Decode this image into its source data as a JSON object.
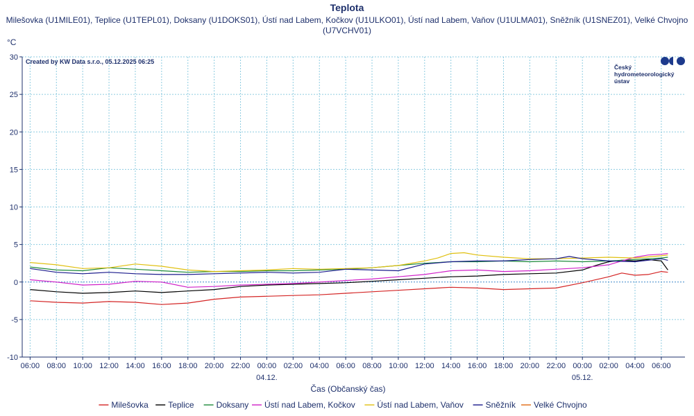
{
  "chart_data": {
    "type": "line",
    "title": "Teplota",
    "subtitle_line1": "Milešovka (U1MILE01), Teplice (U1TEPL01), Doksany (U1DOKS01), Ústí nad Labem, Kočkov (U1ULKO01), Ústí nad Labem, Vaňov (U1ULMA01), Sněžník (U1SNEZ01), Velké Chvojno",
    "subtitle_line2": "(U7VCHV01)",
    "ylabel": "°C",
    "xlabel": "Čas (Občanský čas)",
    "credit": "Created by KW Data s.r.o., 05.12.2025 06:25",
    "logo_text": [
      "Český",
      "hydrometeorologický",
      "ústav"
    ],
    "ylim": [
      -10,
      30
    ],
    "yticks": [
      -10,
      -5,
      0,
      5,
      10,
      15,
      20,
      25,
      30
    ],
    "xlim_hours": [
      -0.6,
      49.8
    ],
    "xtick_labels": [
      "06:00",
      "08:00",
      "10:00",
      "12:00",
      "14:00",
      "16:00",
      "18:00",
      "20:00",
      "22:00",
      "00:00",
      "02:00",
      "04:00",
      "06:00",
      "08:00",
      "10:00",
      "12:00",
      "14:00",
      "16:00",
      "18:00",
      "20:00",
      "22:00",
      "00:00",
      "02:00",
      "04:00",
      "06:00"
    ],
    "date_labels": [
      {
        "label": "04.12.",
        "hour": 18
      },
      {
        "label": "05.12.",
        "hour": 42
      }
    ],
    "grid": true,
    "legend_placement": "bottom",
    "series": [
      {
        "name": "Milešovka",
        "color": "#d42424",
        "x": [
          0,
          2,
          4,
          6,
          8,
          10,
          12,
          14,
          16,
          18,
          20,
          22,
          24,
          26,
          28,
          30,
          32,
          34,
          36,
          38,
          40,
          42,
          44,
          45,
          46,
          47,
          48,
          48.5
        ],
        "y": [
          -2.5,
          -2.7,
          -2.8,
          -2.6,
          -2.7,
          -3.0,
          -2.8,
          -2.3,
          -2.0,
          -1.9,
          -1.8,
          -1.7,
          -1.5,
          -1.3,
          -1.1,
          -0.9,
          -0.7,
          -0.8,
          -1.0,
          -0.9,
          -0.8,
          -0.1,
          0.7,
          1.2,
          0.9,
          1.0,
          1.4,
          1.3
        ]
      },
      {
        "name": "Teplice",
        "color": "#000000",
        "x": [
          0,
          2,
          4,
          6,
          8,
          10,
          12,
          14,
          16,
          18,
          20,
          22,
          24,
          26,
          28,
          30,
          32,
          34,
          36,
          38,
          40,
          42,
          43,
          44,
          45,
          46,
          47,
          48,
          48.5
        ],
        "y": [
          -1.0,
          -1.3,
          -1.5,
          -1.4,
          -1.2,
          -1.4,
          -1.2,
          -1.0,
          -0.6,
          -0.4,
          -0.3,
          -0.2,
          -0.1,
          0.1,
          0.3,
          0.5,
          0.7,
          0.8,
          1.0,
          1.1,
          1.2,
          1.6,
          2.2,
          2.7,
          2.9,
          2.8,
          3.0,
          2.8,
          1.6
        ]
      },
      {
        "name": "Doksany",
        "color": "#1d8a3a",
        "x": [
          0,
          2,
          4,
          6,
          8,
          10,
          12,
          14,
          16,
          18,
          20,
          22,
          24,
          26,
          28,
          30,
          32,
          34,
          36,
          38,
          40,
          42,
          44,
          46,
          48,
          48.5
        ],
        "y": [
          2.0,
          1.6,
          1.5,
          1.9,
          1.7,
          1.5,
          1.3,
          1.4,
          1.4,
          1.5,
          1.5,
          1.6,
          1.7,
          1.9,
          2.2,
          2.5,
          2.7,
          2.7,
          2.8,
          2.7,
          2.8,
          2.7,
          2.8,
          3.0,
          3.2,
          3.3
        ]
      },
      {
        "name": "Ústí nad Labem, Kočkov",
        "color": "#d020c8",
        "x": [
          0,
          2,
          4,
          6,
          8,
          10,
          12,
          14,
          16,
          18,
          20,
          22,
          24,
          26,
          28,
          30,
          32,
          34,
          36,
          38,
          40,
          42,
          44,
          45,
          46,
          47,
          48,
          48.5
        ],
        "y": [
          0.3,
          0.0,
          -0.4,
          -0.3,
          0.1,
          0.0,
          -0.7,
          -0.6,
          -0.4,
          -0.3,
          -0.2,
          0.0,
          0.2,
          0.4,
          0.7,
          1.0,
          1.5,
          1.6,
          1.4,
          1.5,
          1.7,
          1.9,
          2.3,
          2.8,
          3.3,
          3.6,
          3.7,
          3.8
        ]
      },
      {
        "name": "Ústí nad Labem, Vaňov",
        "color": "#e0c010",
        "x": [
          0,
          2,
          4,
          6,
          8,
          10,
          12,
          14,
          16,
          18,
          20,
          22,
          24,
          26,
          28,
          30,
          31,
          32,
          33,
          34,
          36,
          38,
          40,
          42,
          44,
          46,
          48,
          48.5
        ],
        "y": [
          2.6,
          2.3,
          1.8,
          1.9,
          2.4,
          2.1,
          1.6,
          1.4,
          1.5,
          1.6,
          1.8,
          1.7,
          1.8,
          1.9,
          2.2,
          2.8,
          3.2,
          3.8,
          3.9,
          3.6,
          3.3,
          3.1,
          3.1,
          3.2,
          3.3,
          3.2,
          3.5,
          3.6
        ]
      },
      {
        "name": "Sněžník",
        "color": "#1a1a8c",
        "x": [
          0,
          2,
          4,
          6,
          8,
          10,
          12,
          14,
          16,
          18,
          20,
          22,
          24,
          26,
          28,
          30,
          32,
          34,
          36,
          38,
          40,
          41,
          42,
          44,
          46,
          48,
          48.5
        ],
        "y": [
          1.8,
          1.3,
          1.1,
          1.3,
          1.1,
          1.0,
          1.0,
          1.1,
          1.2,
          1.3,
          1.2,
          1.3,
          1.7,
          1.6,
          1.5,
          2.4,
          2.7,
          2.8,
          2.8,
          3.0,
          3.1,
          3.4,
          3.1,
          2.8,
          2.7,
          3.1,
          2.9
        ]
      },
      {
        "name": "Velké Chvojno",
        "color": "#e06a10",
        "x": [],
        "y": []
      }
    ]
  }
}
